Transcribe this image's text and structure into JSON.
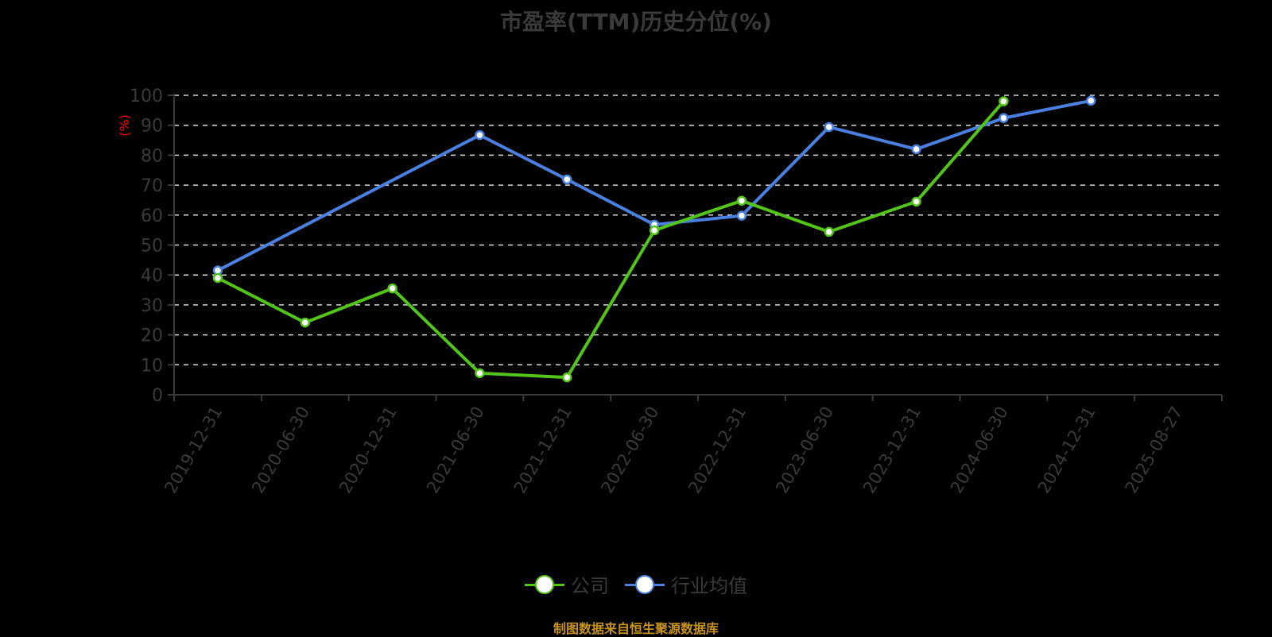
{
  "header": {
    "title": "市盈率(TTM)历史分位(%)"
  },
  "y_axis": {
    "unit_label": "(%)",
    "unit_color": "#ff0000",
    "ticks": [
      "0",
      "10",
      "20",
      "30",
      "40",
      "50",
      "60",
      "70",
      "80",
      "90",
      "100"
    ]
  },
  "x_axis": {
    "ticks": [
      "2019-12-31",
      "2020-06-30",
      "2020-12-31",
      "2021-06-30",
      "2021-12-31",
      "2022-06-30",
      "2022-12-31",
      "2023-06-30",
      "2023-12-31",
      "2024-06-30",
      "2024-12-31",
      "2025-08-27"
    ]
  },
  "legend": {
    "items": [
      {
        "label": "公司",
        "color": "#52c41a"
      },
      {
        "label": "行业均值",
        "color": "#4a80e0"
      }
    ]
  },
  "footer": {
    "source": "制图数据来自恒生聚源数据库"
  },
  "chart_data": {
    "type": "line",
    "title": "市盈率(TTM)历史分位(%)",
    "xlabel": "",
    "ylabel": "(%)",
    "ylim": [
      0,
      100
    ],
    "grid": true,
    "legend_position": "bottom",
    "categories": [
      "2019-12-31",
      "2020-06-30",
      "2020-12-31",
      "2021-06-30",
      "2021-12-31",
      "2022-06-30",
      "2022-12-31",
      "2023-06-30",
      "2023-12-31",
      "2024-06-30",
      "2024-12-31",
      "2025-08-27"
    ],
    "series": [
      {
        "name": "公司",
        "color": "#52c41a",
        "values": [
          39.0,
          24.1,
          35.5,
          7.2,
          5.8,
          54.9,
          64.8,
          54.4,
          64.5,
          98.0,
          null,
          null
        ]
      },
      {
        "name": "行业均值",
        "color": "#4a80e0",
        "values": [
          41.5,
          null,
          null,
          86.7,
          71.9,
          56.8,
          59.8,
          89.4,
          82.0,
          92.4,
          98.2,
          null
        ]
      }
    ]
  }
}
